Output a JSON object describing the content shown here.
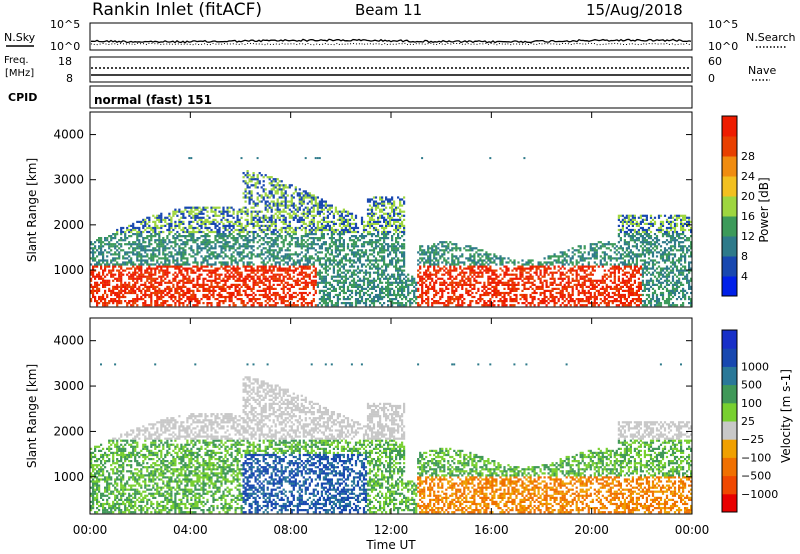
{
  "header": {
    "title": "Rankin Inlet (fitACF)",
    "beam": "Beam 11",
    "date": "15/Aug/2018"
  },
  "colors": {
    "power_scale": [
      "#0020e8",
      "#1848b0",
      "#2e7a8a",
      "#3c9a5a",
      "#9ed640",
      "#f2c020",
      "#f08c10",
      "#e84000",
      "#ee1c00"
    ],
    "velocity_scale": [
      "#e80000",
      "#f04800",
      "#f07000",
      "#f0a000",
      "#c8c8c8",
      "#78d030",
      "#409858",
      "#2a7898",
      "#1848b0",
      "#1830c8"
    ]
  },
  "chart_data": [
    {
      "type": "line",
      "name": "nsky-nsearch-panel",
      "left_label": "N.Sky",
      "right_label": "N.Search",
      "left_ticks": [
        "10^5",
        "10^0"
      ],
      "right_ticks": [
        "10^5",
        "10^0"
      ]
    },
    {
      "type": "line",
      "name": "freq-nave-panel",
      "left_label": "Freq.",
      "left_unit": "[MHz]",
      "right_label": "Nave",
      "left_ticks": [
        18,
        8
      ],
      "right_ticks": [
        60,
        0
      ]
    },
    {
      "type": "table",
      "name": "cpid-panel",
      "label": "CPID",
      "value": "normal (fast) 151"
    },
    {
      "type": "heatmap",
      "name": "power-panel",
      "ylabel": "Slant Range [km]",
      "yticks": [
        1000,
        2000,
        3000,
        4000
      ],
      "ylim": [
        180,
        4500
      ],
      "colorbar_label": "Power [dB]",
      "colorbar_ticks": [
        4,
        8,
        12,
        16,
        20,
        24,
        28
      ]
    },
    {
      "type": "heatmap",
      "name": "velocity-panel",
      "ylabel": "Slant Range [km]",
      "yticks": [
        1000,
        2000,
        3000,
        4000
      ],
      "ylim": [
        180,
        4500
      ],
      "colorbar_label": "Velocity [m s-1]",
      "colorbar_ticks": [
        "1000",
        "500",
        "100",
        "25",
        "−25",
        "−100",
        "−500",
        "−1000"
      ]
    }
  ],
  "x_axis": {
    "xlabel": "Time UT",
    "ticks": [
      "00:00",
      "04:00",
      "08:00",
      "12:00",
      "16:00",
      "20:00",
      "00:00"
    ],
    "xlim_hours": [
      0,
      24
    ]
  }
}
